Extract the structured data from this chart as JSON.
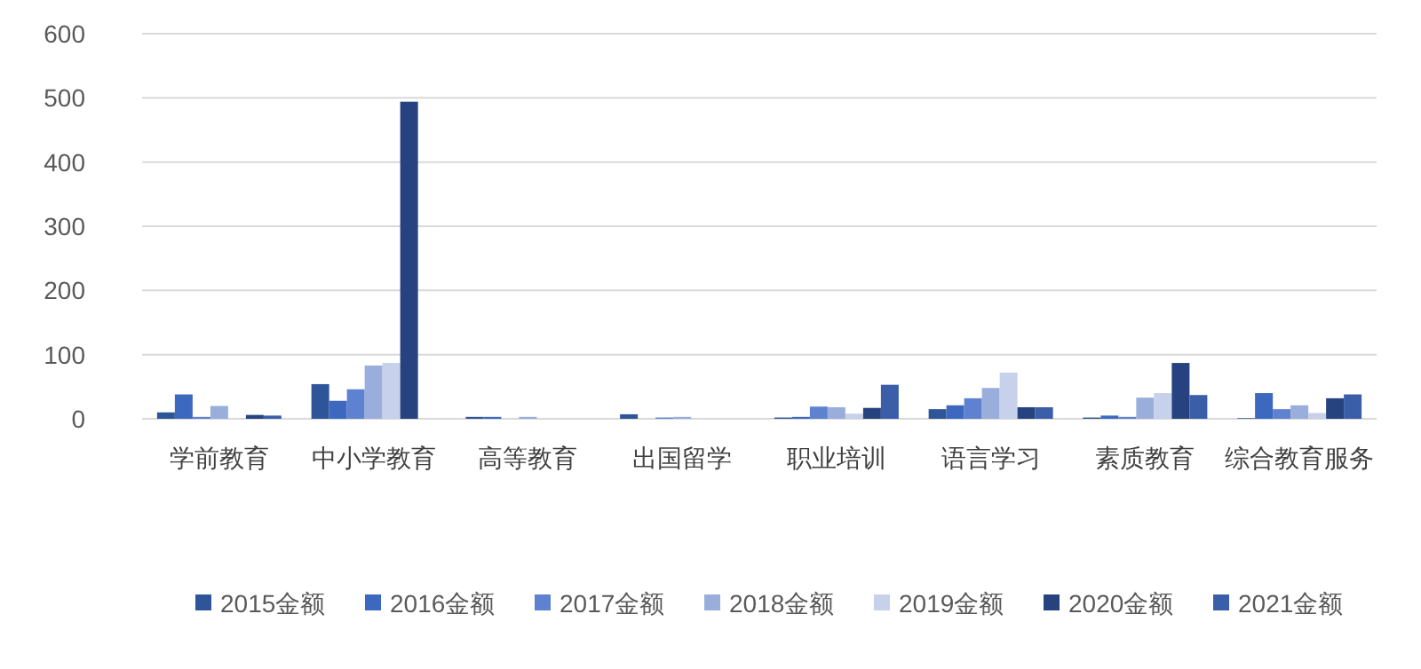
{
  "chart_data": {
    "type": "bar",
    "categories": [
      "学前教育",
      "中小学教育",
      "高等教育",
      "出国留学",
      "职业培训",
      "语言学习",
      "素质教育",
      "综合教育服务"
    ],
    "series": [
      {
        "name": "2015金额",
        "color": "#2e5597",
        "values": [
          10,
          54,
          3,
          7,
          2,
          15,
          2,
          1
        ]
      },
      {
        "name": "2016金额",
        "color": "#3c68c0",
        "values": [
          38,
          28,
          3,
          0,
          3,
          21,
          5,
          40
        ]
      },
      {
        "name": "2017金额",
        "color": "#5f82d0",
        "values": [
          3,
          46,
          0,
          2,
          19,
          32,
          3,
          15
        ]
      },
      {
        "name": "2018金额",
        "color": "#9aaedb",
        "values": [
          20,
          83,
          3,
          3,
          18,
          48,
          33,
          21
        ]
      },
      {
        "name": "2019金额",
        "color": "#c8d1eb",
        "values": [
          null,
          87,
          0,
          null,
          8,
          72,
          40,
          9
        ]
      },
      {
        "name": "2020金额",
        "color": "#26437f",
        "values": [
          6,
          494,
          0,
          0,
          17,
          18,
          87,
          32
        ]
      },
      {
        "name": "2021金额",
        "color": "#3a5ea8",
        "values": [
          5,
          0,
          0,
          0,
          53,
          18,
          37,
          38
        ]
      }
    ],
    "ylim": [
      0,
      600
    ],
    "yticks": [
      0,
      100,
      200,
      300,
      400,
      500,
      600
    ],
    "grid": "y",
    "legend": "bottom"
  }
}
